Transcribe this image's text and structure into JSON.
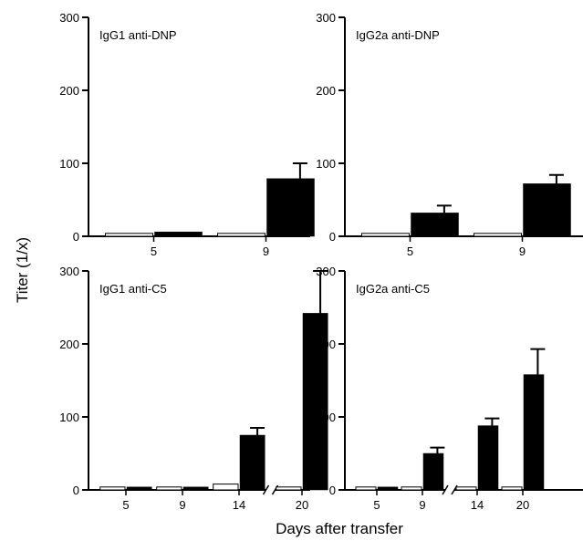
{
  "figure": {
    "ylabel": "Titer (1/x)",
    "xlabel": "Days after transfer"
  },
  "chart_data": [
    {
      "type": "bar",
      "title": "IgG1 anti-DNP",
      "categories": [
        "5",
        "9"
      ],
      "ylim": [
        0,
        300
      ],
      "yticks": [
        0,
        100,
        200,
        300
      ],
      "series": [
        {
          "values": [
            4,
            4
          ],
          "color": "#ffffff"
        },
        {
          "values": [
            6,
            79
          ],
          "errors": [
            0,
            21
          ],
          "color": "#000000"
        }
      ]
    },
    {
      "type": "bar",
      "title": "IgG2a anti-DNP",
      "categories": [
        "5",
        "9"
      ],
      "ylim": [
        0,
        300
      ],
      "yticks": [
        0,
        100,
        200,
        300
      ],
      "series": [
        {
          "values": [
            4,
            4
          ],
          "color": "#ffffff"
        },
        {
          "values": [
            32,
            72
          ],
          "errors": [
            10,
            12
          ],
          "color": "#000000"
        }
      ]
    },
    {
      "type": "bar",
      "title": "IgG1 anti-C5",
      "categories": [
        "5",
        "9",
        "14",
        "20"
      ],
      "axis_break_before_index": 3,
      "ylim": [
        0,
        300
      ],
      "yticks": [
        0,
        100,
        200,
        300
      ],
      "series": [
        {
          "values": [
            4,
            4,
            8,
            4
          ],
          "color": "#ffffff"
        },
        {
          "values": [
            4,
            4,
            75,
            242
          ],
          "errors": [
            0,
            0,
            10,
            58
          ],
          "color": "#000000"
        }
      ]
    },
    {
      "type": "bar",
      "title": "IgG2a anti-C5",
      "categories": [
        "5",
        "9",
        "14",
        "20"
      ],
      "axis_break_before_index": 2,
      "ylim": [
        0,
        300
      ],
      "yticks": [
        0,
        100,
        200,
        300
      ],
      "series": [
        {
          "values": [
            4,
            4,
            4,
            4
          ],
          "color": "#ffffff"
        },
        {
          "values": [
            4,
            50,
            88,
            158
          ],
          "errors": [
            0,
            8,
            10,
            35
          ],
          "color": "#000000"
        }
      ]
    }
  ]
}
